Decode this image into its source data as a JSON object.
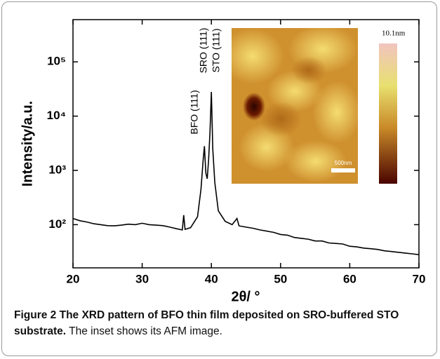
{
  "chart_data": {
    "type": "line",
    "x_label": "2θ/ °",
    "y_label": "Intensity/a.u.",
    "annotations": [
      "BFO (111)",
      "SRO (111)",
      "STO (111)"
    ],
    "x": [
      20,
      21,
      22,
      23,
      24,
      25,
      26,
      27,
      28,
      29,
      30,
      31,
      32,
      33,
      34,
      35,
      35.8,
      36,
      36.2,
      37,
      38,
      38.5,
      38.8,
      39,
      39.2,
      39.4,
      39.6,
      39.8,
      40,
      40.2,
      40.5,
      41,
      42,
      43,
      43.7,
      44,
      45,
      46,
      47,
      48,
      49,
      50,
      51,
      52,
      53,
      54,
      55,
      56,
      57,
      58,
      59,
      60,
      61,
      62,
      63,
      64,
      65,
      66,
      67,
      68,
      69,
      70
    ],
    "values": [
      130,
      118,
      112,
      104,
      100,
      96,
      95,
      98,
      102,
      100,
      106,
      100,
      98,
      96,
      90,
      84,
      80,
      150,
      82,
      88,
      140,
      450,
      1500,
      2800,
      900,
      700,
      1600,
      5000,
      28000,
      2500,
      600,
      180,
      115,
      100,
      130,
      95,
      90,
      86,
      80,
      76,
      72,
      66,
      64,
      58,
      56,
      54,
      50,
      50,
      46,
      45,
      44,
      40,
      39,
      37,
      36,
      35,
      33,
      32,
      31,
      30,
      29,
      28
    ],
    "color": "#000000",
    "xlim": [
      20,
      70
    ],
    "xticks": [
      20,
      30,
      40,
      50,
      60,
      70
    ],
    "ylim": [
      16,
      600000
    ],
    "log_y": true,
    "yticks": [
      {
        "value": 100,
        "label": "10²"
      },
      {
        "value": 1000,
        "label": "10³"
      },
      {
        "value": 10000,
        "label": "10⁴"
      },
      {
        "value": 100000,
        "label": "10⁵"
      }
    ],
    "grid": false
  },
  "inset": {
    "scale_max_label": "10.1nm",
    "scale_bar_label": "500nm"
  },
  "caption": {
    "title": "Figure 2 The XRD pattern of BFO thin film deposited on SRO-buffered STO substrate.",
    "text": "The inset shows its AFM image."
  }
}
